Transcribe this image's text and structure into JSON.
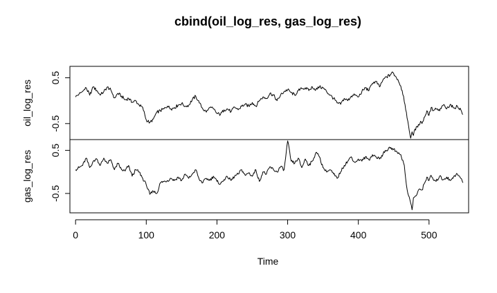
{
  "chart_data": {
    "type": "line",
    "title": "cbind(oil_log_res, gas_log_res)",
    "xlabel": "Time",
    "xlim": [
      -8,
      556
    ],
    "xticks": [
      0,
      100,
      200,
      300,
      400,
      500
    ],
    "xtick_labels": [
      "0",
      "100",
      "200",
      "300",
      "400",
      "500"
    ],
    "grid": false,
    "panels": [
      {
        "name": "oil_log_res",
        "ylabel": "oil_log_res",
        "ylim": [
          -0.85,
          0.75
        ],
        "yticks": [
          0.5,
          -0.5
        ],
        "ytick_labels": [
          "0.5",
          "-0.5"
        ],
        "anchors": [
          [
            0,
            0.08
          ],
          [
            5,
            0.15
          ],
          [
            10,
            0.2
          ],
          [
            15,
            0.28
          ],
          [
            20,
            0.12
          ],
          [
            25,
            0.3
          ],
          [
            30,
            0.22
          ],
          [
            35,
            0.12
          ],
          [
            40,
            0.2
          ],
          [
            45,
            0.3
          ],
          [
            50,
            0.23
          ],
          [
            55,
            0.06
          ],
          [
            60,
            0.16
          ],
          [
            65,
            0.1
          ],
          [
            70,
            0.02
          ],
          [
            75,
            0.05
          ],
          [
            80,
            -0.04
          ],
          [
            85,
            0.0
          ],
          [
            90,
            -0.1
          ],
          [
            95,
            -0.15
          ],
          [
            100,
            -0.42
          ],
          [
            105,
            -0.48
          ],
          [
            110,
            -0.4
          ],
          [
            115,
            -0.25
          ],
          [
            120,
            -0.22
          ],
          [
            125,
            -0.18
          ],
          [
            130,
            -0.12
          ],
          [
            135,
            -0.18
          ],
          [
            140,
            -0.15
          ],
          [
            145,
            -0.1
          ],
          [
            150,
            -0.06
          ],
          [
            155,
            -0.12
          ],
          [
            160,
            -0.1
          ],
          [
            165,
            0.02
          ],
          [
            170,
            0.1
          ],
          [
            175,
            -0.05
          ],
          [
            180,
            -0.18
          ],
          [
            185,
            -0.25
          ],
          [
            190,
            -0.15
          ],
          [
            195,
            -0.18
          ],
          [
            200,
            -0.28
          ],
          [
            205,
            -0.3
          ],
          [
            210,
            -0.2
          ],
          [
            215,
            -0.18
          ],
          [
            220,
            -0.24
          ],
          [
            225,
            -0.14
          ],
          [
            230,
            -0.2
          ],
          [
            235,
            -0.12
          ],
          [
            240,
            -0.08
          ],
          [
            245,
            -0.12
          ],
          [
            250,
            -0.04
          ],
          [
            255,
            -0.12
          ],
          [
            260,
            0.0
          ],
          [
            265,
            0.08
          ],
          [
            270,
            0.05
          ],
          [
            275,
            0.16
          ],
          [
            280,
            0.12
          ],
          [
            285,
            0.0
          ],
          [
            290,
            0.12
          ],
          [
            295,
            0.2
          ],
          [
            300,
            0.24
          ],
          [
            305,
            0.18
          ],
          [
            310,
            0.12
          ],
          [
            315,
            0.22
          ],
          [
            320,
            0.26
          ],
          [
            325,
            0.28
          ],
          [
            330,
            0.22
          ],
          [
            335,
            0.3
          ],
          [
            340,
            0.24
          ],
          [
            345,
            0.3
          ],
          [
            350,
            0.28
          ],
          [
            355,
            0.2
          ],
          [
            360,
            0.12
          ],
          [
            365,
            0.05
          ],
          [
            370,
            -0.05
          ],
          [
            375,
            -0.08
          ],
          [
            380,
            0.05
          ],
          [
            385,
            0.0
          ],
          [
            390,
            0.1
          ],
          [
            395,
            0.12
          ],
          [
            400,
            0.08
          ],
          [
            405,
            0.2
          ],
          [
            410,
            0.28
          ],
          [
            415,
            0.22
          ],
          [
            420,
            0.38
          ],
          [
            425,
            0.42
          ],
          [
            430,
            0.3
          ],
          [
            435,
            0.46
          ],
          [
            440,
            0.52
          ],
          [
            445,
            0.56
          ],
          [
            448,
            0.63
          ],
          [
            452,
            0.54
          ],
          [
            456,
            0.46
          ],
          [
            460,
            0.32
          ],
          [
            464,
            0.1
          ],
          [
            467,
            -0.2
          ],
          [
            470,
            -0.45
          ],
          [
            472,
            -0.65
          ],
          [
            474,
            -0.82
          ],
          [
            476,
            -0.68
          ],
          [
            478,
            -0.76
          ],
          [
            480,
            -0.62
          ],
          [
            484,
            -0.58
          ],
          [
            488,
            -0.45
          ],
          [
            490,
            -0.5
          ],
          [
            494,
            -0.35
          ],
          [
            497,
            -0.22
          ],
          [
            500,
            -0.32
          ],
          [
            503,
            -0.15
          ],
          [
            506,
            -0.22
          ],
          [
            510,
            -0.18
          ],
          [
            515,
            -0.22
          ],
          [
            520,
            -0.1
          ],
          [
            525,
            -0.18
          ],
          [
            530,
            -0.08
          ],
          [
            535,
            -0.16
          ],
          [
            540,
            -0.12
          ],
          [
            545,
            -0.2
          ],
          [
            548,
            -0.3
          ]
        ]
      },
      {
        "name": "gas_log_res",
        "ylabel": "gas_log_res",
        "ylim": [
          -0.95,
          0.75
        ],
        "yticks": [
          0.5,
          -0.5
        ],
        "ytick_labels": [
          "0.5",
          "-0.5"
        ],
        "anchors": [
          [
            0,
            0.05
          ],
          [
            5,
            0.1
          ],
          [
            10,
            0.15
          ],
          [
            15,
            0.32
          ],
          [
            20,
            0.1
          ],
          [
            25,
            0.25
          ],
          [
            30,
            0.3
          ],
          [
            35,
            0.15
          ],
          [
            40,
            0.32
          ],
          [
            45,
            0.2
          ],
          [
            50,
            0.28
          ],
          [
            55,
            0.05
          ],
          [
            60,
            0.2
          ],
          [
            65,
            0.05
          ],
          [
            70,
            0.02
          ],
          [
            75,
            0.15
          ],
          [
            80,
            -0.1
          ],
          [
            85,
            0.05
          ],
          [
            90,
            0.0
          ],
          [
            95,
            -0.15
          ],
          [
            100,
            -0.3
          ],
          [
            105,
            -0.52
          ],
          [
            110,
            -0.45
          ],
          [
            115,
            -0.5
          ],
          [
            120,
            -0.25
          ],
          [
            125,
            -0.22
          ],
          [
            130,
            -0.2
          ],
          [
            135,
            -0.15
          ],
          [
            140,
            -0.2
          ],
          [
            145,
            -0.12
          ],
          [
            150,
            -0.2
          ],
          [
            155,
            -0.05
          ],
          [
            160,
            -0.15
          ],
          [
            165,
            -0.05
          ],
          [
            170,
            0.05
          ],
          [
            175,
            -0.18
          ],
          [
            180,
            -0.25
          ],
          [
            185,
            -0.15
          ],
          [
            190,
            -0.2
          ],
          [
            195,
            -0.1
          ],
          [
            200,
            -0.22
          ],
          [
            205,
            -0.28
          ],
          [
            210,
            -0.18
          ],
          [
            215,
            -0.12
          ],
          [
            220,
            -0.2
          ],
          [
            225,
            -0.1
          ],
          [
            230,
            -0.05
          ],
          [
            235,
            0.05
          ],
          [
            240,
            -0.08
          ],
          [
            245,
            -0.02
          ],
          [
            250,
            -0.1
          ],
          [
            255,
            0.05
          ],
          [
            260,
            -0.22
          ],
          [
            265,
            0.0
          ],
          [
            270,
            -0.05
          ],
          [
            275,
            0.12
          ],
          [
            280,
            0.05
          ],
          [
            285,
            0.0
          ],
          [
            290,
            0.12
          ],
          [
            295,
            0.05
          ],
          [
            300,
            0.72
          ],
          [
            305,
            0.25
          ],
          [
            310,
            0.2
          ],
          [
            315,
            0.32
          ],
          [
            320,
            0.1
          ],
          [
            325,
            0.3
          ],
          [
            330,
            0.15
          ],
          [
            335,
            0.25
          ],
          [
            340,
            0.45
          ],
          [
            345,
            0.35
          ],
          [
            350,
            0.1
          ],
          [
            355,
            0.0
          ],
          [
            360,
            0.05
          ],
          [
            365,
            -0.05
          ],
          [
            370,
            -0.15
          ],
          [
            375,
            0.0
          ],
          [
            380,
            0.15
          ],
          [
            385,
            0.25
          ],
          [
            390,
            0.35
          ],
          [
            395,
            0.22
          ],
          [
            400,
            0.3
          ],
          [
            405,
            0.25
          ],
          [
            410,
            0.35
          ],
          [
            415,
            0.28
          ],
          [
            420,
            0.4
          ],
          [
            425,
            0.35
          ],
          [
            430,
            0.3
          ],
          [
            435,
            0.42
          ],
          [
            440,
            0.5
          ],
          [
            445,
            0.55
          ],
          [
            450,
            0.53
          ],
          [
            455,
            0.45
          ],
          [
            460,
            0.4
          ],
          [
            465,
            0.15
          ],
          [
            468,
            -0.3
          ],
          [
            471,
            -0.55
          ],
          [
            474,
            -0.72
          ],
          [
            476,
            -0.88
          ],
          [
            478,
            -0.6
          ],
          [
            482,
            -0.55
          ],
          [
            486,
            -0.4
          ],
          [
            490,
            -0.42
          ],
          [
            494,
            -0.25
          ],
          [
            497,
            -0.12
          ],
          [
            500,
            -0.2
          ],
          [
            503,
            -0.08
          ],
          [
            506,
            -0.18
          ],
          [
            510,
            -0.22
          ],
          [
            515,
            -0.1
          ],
          [
            520,
            -0.18
          ],
          [
            525,
            -0.12
          ],
          [
            530,
            -0.2
          ],
          [
            535,
            -0.1
          ],
          [
            540,
            -0.05
          ],
          [
            545,
            -0.15
          ],
          [
            548,
            -0.25
          ]
        ]
      }
    ]
  }
}
